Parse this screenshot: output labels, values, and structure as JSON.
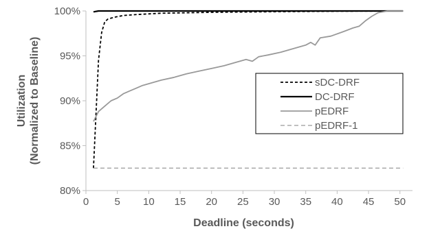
{
  "chart_data": {
    "type": "line",
    "xlabel": "Deadline (seconds)",
    "ylabel_lines": [
      "Utilization",
      "(Normalized to Baseline)"
    ],
    "xlim": [
      0,
      52
    ],
    "ylim": [
      80,
      100
    ],
    "grid": false,
    "legend_position": "center-right",
    "x_ticks": [
      0,
      5,
      10,
      15,
      20,
      25,
      30,
      35,
      40,
      45,
      50
    ],
    "x_tick_labels": [
      "0",
      "5",
      "10",
      "15",
      "20",
      "25",
      "30",
      "35",
      "40",
      "45",
      "50"
    ],
    "y_ticks": [
      80,
      85,
      90,
      95,
      100
    ],
    "y_tick_labels": [
      "80%",
      "85%",
      "90%",
      "95%",
      "100%"
    ],
    "series": [
      {
        "name": "sDC-DRF",
        "color": "#000000",
        "dash": "dashed",
        "points": [
          [
            1.2,
            82.5
          ],
          [
            1.6,
            88.5
          ],
          [
            2.0,
            94.5
          ],
          [
            2.5,
            97.6
          ],
          [
            3.0,
            98.8
          ],
          [
            3.5,
            99.1
          ],
          [
            4.5,
            99.3
          ],
          [
            6.0,
            99.5
          ],
          [
            8.0,
            99.6
          ],
          [
            12.0,
            99.75
          ],
          [
            20.0,
            99.85
          ],
          [
            30.0,
            99.92
          ],
          [
            40.0,
            99.97
          ],
          [
            50.5,
            100.0
          ]
        ]
      },
      {
        "name": "DC-DRF",
        "color": "#000000",
        "dash": "solid",
        "points": [
          [
            1.2,
            99.9
          ],
          [
            2.0,
            100.0
          ],
          [
            50.5,
            100.0
          ]
        ]
      },
      {
        "name": "pEDRF",
        "color": "#999999",
        "dash": "solid",
        "points": [
          [
            1.2,
            87.7
          ],
          [
            2.0,
            88.8
          ],
          [
            3.0,
            89.4
          ],
          [
            4.0,
            90.0
          ],
          [
            5.0,
            90.3
          ],
          [
            6.0,
            90.8
          ],
          [
            7.0,
            91.1
          ],
          [
            8.0,
            91.4
          ],
          [
            9.0,
            91.7
          ],
          [
            10.0,
            91.9
          ],
          [
            12.0,
            92.3
          ],
          [
            14.0,
            92.6
          ],
          [
            16.0,
            93.0
          ],
          [
            18.0,
            93.3
          ],
          [
            20.0,
            93.6
          ],
          [
            22.0,
            93.9
          ],
          [
            24.0,
            94.3
          ],
          [
            25.5,
            94.6
          ],
          [
            26.5,
            94.4
          ],
          [
            27.5,
            94.9
          ],
          [
            29.0,
            95.1
          ],
          [
            31.0,
            95.4
          ],
          [
            33.0,
            95.8
          ],
          [
            35.0,
            96.2
          ],
          [
            35.8,
            96.5
          ],
          [
            36.5,
            96.2
          ],
          [
            37.3,
            97.0
          ],
          [
            39.0,
            97.2
          ],
          [
            41.0,
            97.7
          ],
          [
            42.5,
            98.1
          ],
          [
            43.5,
            98.3
          ],
          [
            44.5,
            98.9
          ],
          [
            45.5,
            99.4
          ],
          [
            46.5,
            99.8
          ],
          [
            48.0,
            100.0
          ],
          [
            50.5,
            100.0
          ]
        ]
      },
      {
        "name": "pEDRF-1",
        "color": "#999999",
        "dash": "dashed",
        "points": [
          [
            1.2,
            82.5
          ],
          [
            50.5,
            82.5
          ]
        ]
      }
    ]
  }
}
